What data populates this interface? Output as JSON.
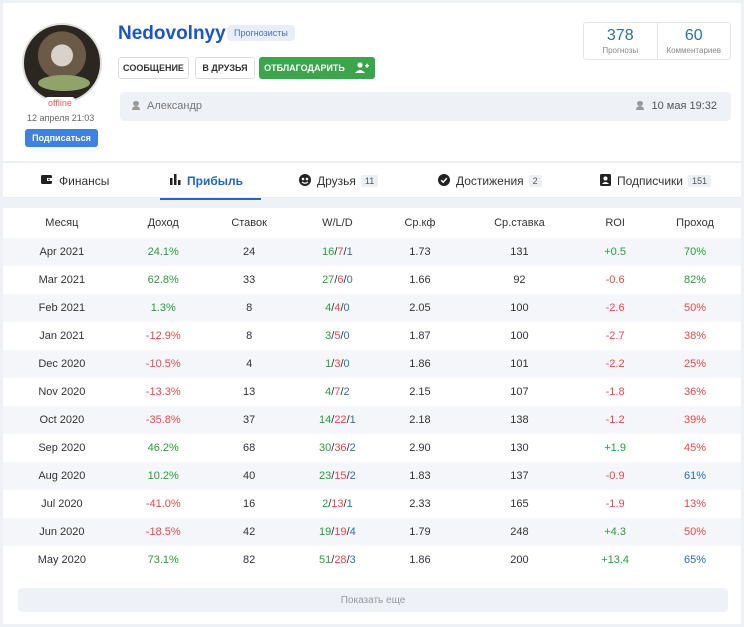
{
  "profile": {
    "username": "Nedovolnyy",
    "role": "Прогнозисты",
    "status": "offline",
    "registered": "12 апреля 21:03",
    "subscribe_label": "Подписаться",
    "buttons": {
      "message": "СООБЩЕНИЕ",
      "friends": "В ДРУЗЬЯ",
      "thanks": "ОТБЛАГОДАРИТЬ"
    },
    "stats": [
      {
        "value": "378",
        "label": "Прогнозы"
      },
      {
        "value": "60",
        "label": "Комментариев"
      }
    ],
    "name": "Александр",
    "last_seen": "10 мая 19:32"
  },
  "tabs": [
    {
      "label": "Финансы",
      "icon": "wallet-icon"
    },
    {
      "label": "Прибыль",
      "icon": "bar-chart-icon",
      "active": true
    },
    {
      "label": "Друзья",
      "icon": "friends-icon",
      "count": "11"
    },
    {
      "label": "Достижения",
      "icon": "badge-check-icon",
      "count": "2"
    },
    {
      "label": "Подписчики",
      "icon": "subscribers-icon",
      "count": "151"
    }
  ],
  "table": {
    "headers": [
      "Месяц",
      "Доход",
      "Ставок",
      "W/L/D",
      "Ср.кф",
      "Ср.ставка",
      "ROI",
      "Проход"
    ],
    "rows": [
      {
        "month": "Apr 2021",
        "income": "24.1%",
        "bets": "24",
        "w": "16",
        "l": "7",
        "d": "1",
        "kf": "1.73",
        "stake": "131",
        "roi": "+0.5",
        "pass": "70%"
      },
      {
        "month": "Mar 2021",
        "income": "62.8%",
        "bets": "33",
        "w": "27",
        "l": "6",
        "d": "0",
        "kf": "1.66",
        "stake": "92",
        "roi": "-0.6",
        "pass": "82%"
      },
      {
        "month": "Feb 2021",
        "income": "1.3%",
        "bets": "8",
        "w": "4",
        "l": "4",
        "d": "0",
        "kf": "2.05",
        "stake": "100",
        "roi": "-2.6",
        "pass": "50%"
      },
      {
        "month": "Jan 2021",
        "income": "-12.9%",
        "bets": "8",
        "w": "3",
        "l": "5",
        "d": "0",
        "kf": "1.87",
        "stake": "100",
        "roi": "-2.7",
        "pass": "38%"
      },
      {
        "month": "Dec 2020",
        "income": "-10.5%",
        "bets": "4",
        "w": "1",
        "l": "3",
        "d": "0",
        "kf": "1.86",
        "stake": "101",
        "roi": "-2.2",
        "pass": "25%"
      },
      {
        "month": "Nov 2020",
        "income": "-13.3%",
        "bets": "13",
        "w": "4",
        "l": "7",
        "d": "2",
        "kf": "2.15",
        "stake": "107",
        "roi": "-1.8",
        "pass": "36%"
      },
      {
        "month": "Oct 2020",
        "income": "-35.8%",
        "bets": "37",
        "w": "14",
        "l": "22",
        "d": "1",
        "kf": "2.18",
        "stake": "138",
        "roi": "-1.2",
        "pass": "39%"
      },
      {
        "month": "Sep 2020",
        "income": "46.2%",
        "bets": "68",
        "w": "30",
        "l": "36",
        "d": "2",
        "kf": "2.90",
        "stake": "130",
        "roi": "+1.9",
        "pass": "45%"
      },
      {
        "month": "Aug 2020",
        "income": "10.2%",
        "bets": "40",
        "w": "23",
        "l": "15",
        "d": "2",
        "kf": "1.83",
        "stake": "137",
        "roi": "-0.9",
        "pass": "61%"
      },
      {
        "month": "Jul 2020",
        "income": "-41.0%",
        "bets": "16",
        "w": "2",
        "l": "13",
        "d": "1",
        "kf": "2.33",
        "stake": "165",
        "roi": "-1.9",
        "pass": "13%"
      },
      {
        "month": "Jun 2020",
        "income": "-18.5%",
        "bets": "42",
        "w": "19",
        "l": "19",
        "d": "4",
        "kf": "1.79",
        "stake": "248",
        "roi": "+4.3",
        "pass": "50%"
      },
      {
        "month": "May 2020",
        "income": "73.1%",
        "bets": "82",
        "w": "51",
        "l": "28",
        "d": "3",
        "kf": "1.86",
        "stake": "200",
        "roi": "+13.4",
        "pass": "65%"
      }
    ]
  },
  "show_more_label": "Показать еще",
  "colors": {
    "accent": "#2464c4",
    "green": "#2a9d3a",
    "red": "#e24a4a",
    "blue": "#2f6db5",
    "button_green": "#3aa54b"
  }
}
